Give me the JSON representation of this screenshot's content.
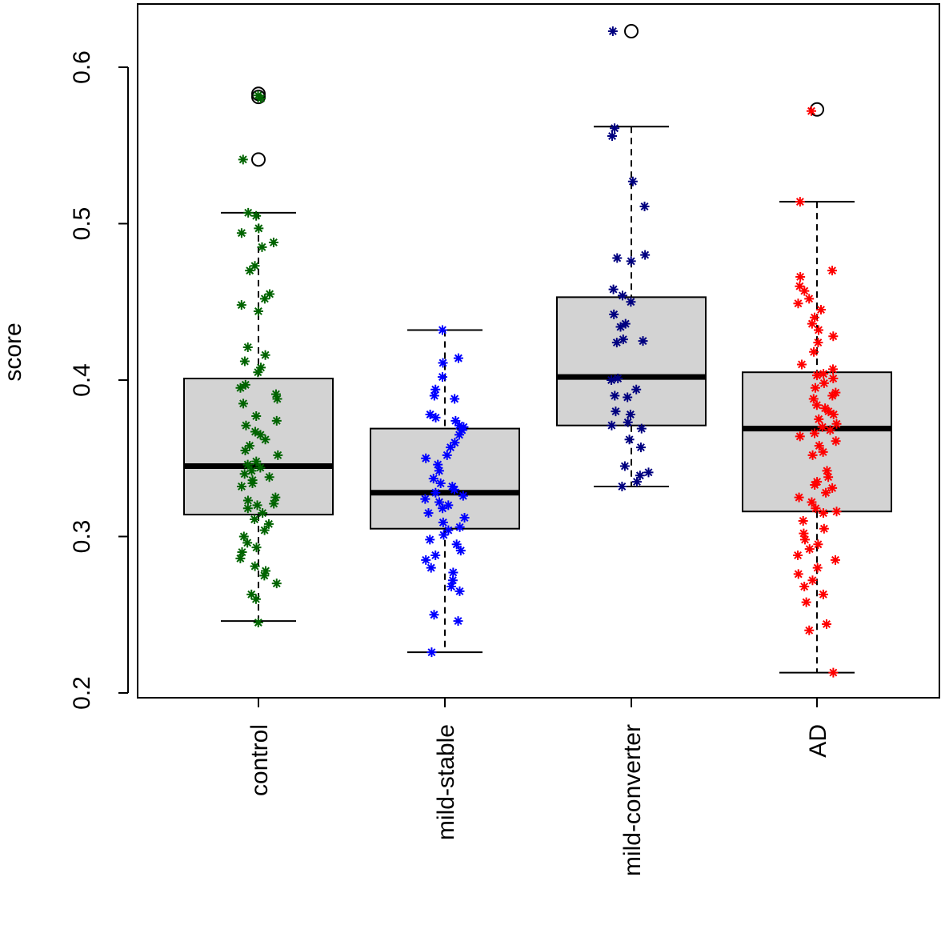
{
  "chart_data": {
    "type": "box",
    "title": "",
    "xlabel": "",
    "ylabel": "score",
    "ylim": [
      0.2,
      0.64
    ],
    "yticks": [
      "0.2",
      "0.3",
      "0.4",
      "0.5",
      "0.6"
    ],
    "grid": false,
    "box_fill": "#d3d3d3",
    "categories": [
      "control",
      "mild-stable",
      "mild-converter",
      "AD"
    ],
    "groups": [
      {
        "name": "control",
        "color": "#006400",
        "whisker_low": 0.246,
        "q1": 0.314,
        "median": 0.345,
        "q3": 0.401,
        "whisker_high": 0.507,
        "outliers": [
          0.583,
          0.581,
          0.541
        ],
        "points": [
          0.582,
          0.58,
          0.541,
          0.507,
          0.505,
          0.497,
          0.494,
          0.488,
          0.485,
          0.473,
          0.47,
          0.455,
          0.452,
          0.448,
          0.444,
          0.421,
          0.416,
          0.412,
          0.408,
          0.405,
          0.397,
          0.395,
          0.391,
          0.388,
          0.385,
          0.377,
          0.374,
          0.371,
          0.367,
          0.365,
          0.362,
          0.358,
          0.355,
          0.352,
          0.348,
          0.346,
          0.344,
          0.342,
          0.34,
          0.338,
          0.336,
          0.334,
          0.332,
          0.325,
          0.323,
          0.321,
          0.32,
          0.318,
          0.315,
          0.311,
          0.308,
          0.304,
          0.3,
          0.296,
          0.293,
          0.29,
          0.286,
          0.281,
          0.278,
          0.275,
          0.27,
          0.263,
          0.26,
          0.245
        ]
      },
      {
        "name": "mild-stable",
        "color": "#0000ff",
        "whisker_low": 0.226,
        "q1": 0.305,
        "median": 0.328,
        "q3": 0.369,
        "whisker_high": 0.432,
        "outliers": [],
        "points": [
          0.432,
          0.414,
          0.411,
          0.402,
          0.394,
          0.39,
          0.388,
          0.378,
          0.376,
          0.374,
          0.371,
          0.37,
          0.368,
          0.365,
          0.36,
          0.357,
          0.352,
          0.35,
          0.346,
          0.342,
          0.337,
          0.334,
          0.332,
          0.33,
          0.328,
          0.326,
          0.324,
          0.322,
          0.32,
          0.318,
          0.315,
          0.312,
          0.309,
          0.306,
          0.304,
          0.301,
          0.298,
          0.295,
          0.291,
          0.288,
          0.285,
          0.28,
          0.277,
          0.272,
          0.268,
          0.265,
          0.25,
          0.246,
          0.226
        ]
      },
      {
        "name": "mild-converter",
        "color": "#000080",
        "whisker_low": 0.332,
        "q1": 0.371,
        "median": 0.402,
        "q3": 0.453,
        "whisker_high": 0.562,
        "outliers": [
          0.623
        ],
        "points": [
          0.623,
          0.561,
          0.556,
          0.527,
          0.511,
          0.48,
          0.478,
          0.476,
          0.458,
          0.454,
          0.45,
          0.442,
          0.436,
          0.434,
          0.426,
          0.425,
          0.424,
          0.401,
          0.4,
          0.394,
          0.39,
          0.389,
          0.38,
          0.378,
          0.373,
          0.371,
          0.369,
          0.362,
          0.357,
          0.345,
          0.341,
          0.339,
          0.335,
          0.332
        ]
      },
      {
        "name": "AD",
        "color": "#ff0000",
        "whisker_low": 0.213,
        "q1": 0.316,
        "median": 0.369,
        "q3": 0.405,
        "whisker_high": 0.514,
        "outliers": [
          0.573
        ],
        "points": [
          0.572,
          0.514,
          0.47,
          0.466,
          0.46,
          0.457,
          0.452,
          0.449,
          0.445,
          0.44,
          0.436,
          0.432,
          0.428,
          0.424,
          0.418,
          0.41,
          0.407,
          0.404,
          0.403,
          0.401,
          0.398,
          0.395,
          0.392,
          0.39,
          0.388,
          0.384,
          0.382,
          0.38,
          0.378,
          0.375,
          0.372,
          0.37,
          0.368,
          0.366,
          0.364,
          0.361,
          0.358,
          0.354,
          0.352,
          0.342,
          0.338,
          0.335,
          0.333,
          0.331,
          0.328,
          0.325,
          0.322,
          0.318,
          0.316,
          0.315,
          0.31,
          0.305,
          0.302,
          0.298,
          0.295,
          0.292,
          0.288,
          0.285,
          0.28,
          0.276,
          0.272,
          0.268,
          0.263,
          0.258,
          0.244,
          0.24,
          0.213
        ]
      }
    ]
  }
}
